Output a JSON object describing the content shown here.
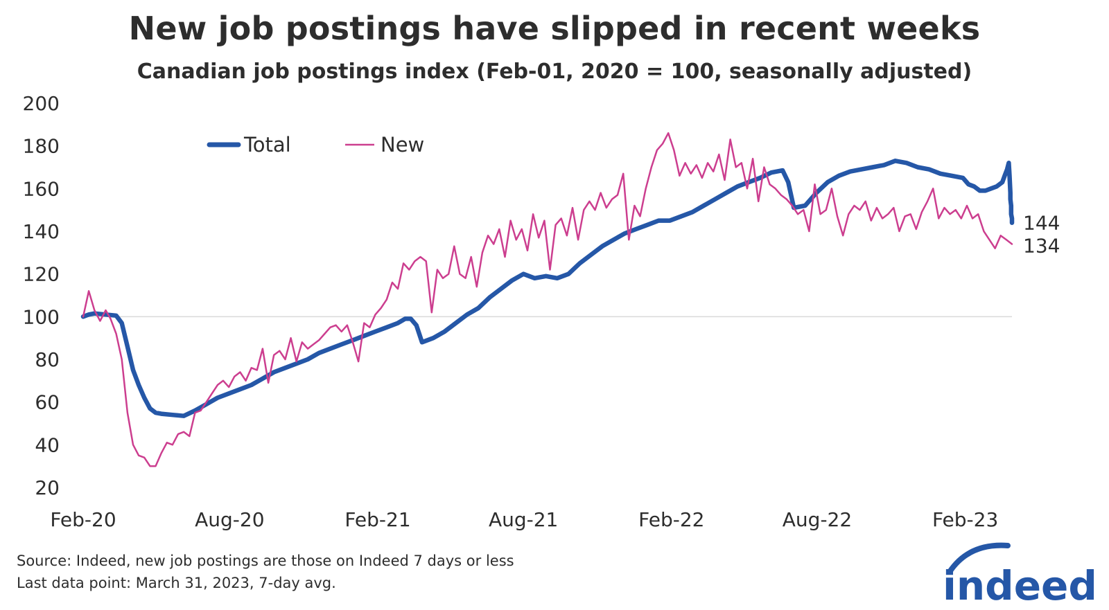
{
  "title": "New job postings have slipped in recent weeks",
  "subtitle": "Canadian job postings index (Feb-01, 2020 = 100, seasonally adjusted)",
  "source_line1": "Source: Indeed, new job postings are those on Indeed 7 days or less",
  "source_line2": "Last data point: March 31, 2023, 7-day avg.",
  "logo_text": "indeed",
  "colors": {
    "total": "#2557a7",
    "new": "#cc3e8f",
    "baseline": "#d9d9d9",
    "text": "#2d2d2d"
  },
  "chart_data": {
    "type": "line",
    "ylim": [
      20,
      200
    ],
    "yticks": [
      20,
      40,
      60,
      80,
      100,
      120,
      140,
      160,
      180,
      200
    ],
    "xlim": [
      "2020-02-01",
      "2023-03-31"
    ],
    "xticks": [
      {
        "label": "Feb-20",
        "date": "2020-02-01"
      },
      {
        "label": "Aug-20",
        "date": "2020-08-01"
      },
      {
        "label": "Feb-21",
        "date": "2021-02-01"
      },
      {
        "label": "Aug-21",
        "date": "2021-08-01"
      },
      {
        "label": "Feb-22",
        "date": "2022-02-01"
      },
      {
        "label": "Aug-22",
        "date": "2022-08-01"
      },
      {
        "label": "Feb-23",
        "date": "2023-02-01"
      }
    ],
    "reference_line": 100,
    "legend": {
      "placement": "top-left"
    },
    "end_labels": {
      "total": "144",
      "new": "134"
    },
    "series": [
      {
        "name": "Total",
        "key": "total",
        "points": [
          [
            "2020-02-01",
            100
          ],
          [
            "2020-02-08",
            101
          ],
          [
            "2020-02-15",
            101.5
          ],
          [
            "2020-02-29",
            101
          ],
          [
            "2020-03-13",
            100.5
          ],
          [
            "2020-03-20",
            97
          ],
          [
            "2020-03-27",
            86
          ],
          [
            "2020-04-03",
            75
          ],
          [
            "2020-04-10",
            68
          ],
          [
            "2020-04-17",
            62
          ],
          [
            "2020-04-24",
            57
          ],
          [
            "2020-05-01",
            55
          ],
          [
            "2020-05-08",
            54.5
          ],
          [
            "2020-05-22",
            54
          ],
          [
            "2020-06-05",
            53.5
          ],
          [
            "2020-06-19",
            56
          ],
          [
            "2020-07-03",
            59
          ],
          [
            "2020-07-17",
            62
          ],
          [
            "2020-07-31",
            64
          ],
          [
            "2020-08-14",
            66
          ],
          [
            "2020-08-28",
            68
          ],
          [
            "2020-09-11",
            71
          ],
          [
            "2020-09-25",
            74
          ],
          [
            "2020-10-09",
            76
          ],
          [
            "2020-10-23",
            78
          ],
          [
            "2020-11-06",
            80
          ],
          [
            "2020-11-20",
            83
          ],
          [
            "2020-12-04",
            85
          ],
          [
            "2020-12-18",
            87
          ],
          [
            "2021-01-01",
            89
          ],
          [
            "2021-01-15",
            91
          ],
          [
            "2021-01-29",
            93
          ],
          [
            "2021-02-12",
            95
          ],
          [
            "2021-02-26",
            97
          ],
          [
            "2021-03-07",
            99
          ],
          [
            "2021-03-14",
            99
          ],
          [
            "2021-03-21",
            96
          ],
          [
            "2021-03-28",
            88
          ],
          [
            "2021-04-11",
            90
          ],
          [
            "2021-04-25",
            93
          ],
          [
            "2021-05-09",
            97
          ],
          [
            "2021-05-23",
            101
          ],
          [
            "2021-06-06",
            104
          ],
          [
            "2021-06-20",
            109
          ],
          [
            "2021-07-04",
            113
          ],
          [
            "2021-07-18",
            117
          ],
          [
            "2021-08-01",
            120
          ],
          [
            "2021-08-15",
            118
          ],
          [
            "2021-08-29",
            119
          ],
          [
            "2021-09-12",
            118
          ],
          [
            "2021-09-26",
            120
          ],
          [
            "2021-10-10",
            125
          ],
          [
            "2021-10-24",
            129
          ],
          [
            "2021-11-07",
            133
          ],
          [
            "2021-11-21",
            136
          ],
          [
            "2021-12-05",
            139
          ],
          [
            "2021-12-19",
            141
          ],
          [
            "2022-01-02",
            143
          ],
          [
            "2022-01-16",
            145
          ],
          [
            "2022-01-30",
            145
          ],
          [
            "2022-02-13",
            147
          ],
          [
            "2022-02-27",
            149
          ],
          [
            "2022-03-13",
            152
          ],
          [
            "2022-03-27",
            155
          ],
          [
            "2022-04-10",
            158
          ],
          [
            "2022-04-24",
            161
          ],
          [
            "2022-05-08",
            163
          ],
          [
            "2022-05-22",
            165
          ],
          [
            "2022-06-05",
            167.5
          ],
          [
            "2022-06-19",
            168.5
          ],
          [
            "2022-06-26",
            163
          ],
          [
            "2022-07-03",
            151
          ],
          [
            "2022-07-17",
            152
          ],
          [
            "2022-07-31",
            158
          ],
          [
            "2022-08-14",
            163
          ],
          [
            "2022-08-28",
            166
          ],
          [
            "2022-09-11",
            168
          ],
          [
            "2022-09-25",
            169
          ],
          [
            "2022-10-09",
            170
          ],
          [
            "2022-10-23",
            171
          ],
          [
            "2022-11-06",
            173
          ],
          [
            "2022-11-20",
            172
          ],
          [
            "2022-12-04",
            170
          ],
          [
            "2022-12-18",
            169
          ],
          [
            "2023-01-01",
            167
          ],
          [
            "2023-01-15",
            166
          ],
          [
            "2023-01-29",
            165
          ],
          [
            "2023-02-05",
            162
          ],
          [
            "2023-02-12",
            161
          ],
          [
            "2023-02-19",
            159
          ],
          [
            "2023-02-26",
            159
          ],
          [
            "2023-03-05",
            160
          ],
          [
            "2023-03-12",
            161
          ],
          [
            "2023-03-19",
            163
          ],
          [
            "2023-03-22",
            166
          ],
          [
            "2023-03-25",
            169
          ],
          [
            "2023-03-27",
            172
          ],
          [
            "2023-03-28",
            166
          ],
          [
            "2023-03-29",
            158
          ],
          [
            "2023-03-29",
            155
          ],
          [
            "2023-03-30",
            152
          ],
          [
            "2023-03-30",
            148
          ],
          [
            "2023-03-31",
            146
          ],
          [
            "2023-03-31",
            144
          ]
        ]
      },
      {
        "name": "New",
        "key": "new",
        "points": [
          [
            "2020-02-01",
            100
          ],
          [
            "2020-02-08",
            112
          ],
          [
            "2020-02-15",
            103
          ],
          [
            "2020-02-22",
            98
          ],
          [
            "2020-02-29",
            103
          ],
          [
            "2020-03-06",
            99
          ],
          [
            "2020-03-13",
            92
          ],
          [
            "2020-03-20",
            80
          ],
          [
            "2020-03-27",
            55
          ],
          [
            "2020-04-03",
            40
          ],
          [
            "2020-04-10",
            35
          ],
          [
            "2020-04-17",
            34
          ],
          [
            "2020-04-24",
            30
          ],
          [
            "2020-05-01",
            30
          ],
          [
            "2020-05-08",
            36
          ],
          [
            "2020-05-15",
            41
          ],
          [
            "2020-05-22",
            40
          ],
          [
            "2020-05-29",
            45
          ],
          [
            "2020-06-05",
            46
          ],
          [
            "2020-06-12",
            44
          ],
          [
            "2020-06-19",
            55
          ],
          [
            "2020-06-26",
            56
          ],
          [
            "2020-07-03",
            60
          ],
          [
            "2020-07-10",
            64
          ],
          [
            "2020-07-17",
            68
          ],
          [
            "2020-07-24",
            70
          ],
          [
            "2020-07-31",
            67
          ],
          [
            "2020-08-07",
            72
          ],
          [
            "2020-08-14",
            74
          ],
          [
            "2020-08-21",
            70
          ],
          [
            "2020-08-28",
            76
          ],
          [
            "2020-09-04",
            75
          ],
          [
            "2020-09-11",
            85
          ],
          [
            "2020-09-18",
            69
          ],
          [
            "2020-09-25",
            82
          ],
          [
            "2020-10-02",
            84
          ],
          [
            "2020-10-09",
            80
          ],
          [
            "2020-10-16",
            90
          ],
          [
            "2020-10-23",
            79
          ],
          [
            "2020-10-30",
            88
          ],
          [
            "2020-11-06",
            85
          ],
          [
            "2020-11-13",
            87
          ],
          [
            "2020-11-20",
            89
          ],
          [
            "2020-11-27",
            92
          ],
          [
            "2020-12-04",
            95
          ],
          [
            "2020-12-11",
            96
          ],
          [
            "2020-12-18",
            93
          ],
          [
            "2020-12-25",
            96
          ],
          [
            "2021-01-01",
            88
          ],
          [
            "2021-01-08",
            79
          ],
          [
            "2021-01-15",
            97
          ],
          [
            "2021-01-22",
            95
          ],
          [
            "2021-01-29",
            101
          ],
          [
            "2021-02-05",
            104
          ],
          [
            "2021-02-12",
            108
          ],
          [
            "2021-02-19",
            116
          ],
          [
            "2021-02-26",
            113
          ],
          [
            "2021-03-05",
            125
          ],
          [
            "2021-03-12",
            122
          ],
          [
            "2021-03-19",
            126
          ],
          [
            "2021-03-26",
            128
          ],
          [
            "2021-04-02",
            126
          ],
          [
            "2021-04-09",
            102
          ],
          [
            "2021-04-16",
            122
          ],
          [
            "2021-04-23",
            118
          ],
          [
            "2021-04-30",
            120
          ],
          [
            "2021-05-07",
            133
          ],
          [
            "2021-05-14",
            120
          ],
          [
            "2021-05-21",
            118
          ],
          [
            "2021-05-28",
            128
          ],
          [
            "2021-06-04",
            114
          ],
          [
            "2021-06-11",
            130
          ],
          [
            "2021-06-18",
            138
          ],
          [
            "2021-06-25",
            134
          ],
          [
            "2021-07-02",
            141
          ],
          [
            "2021-07-09",
            128
          ],
          [
            "2021-07-16",
            145
          ],
          [
            "2021-07-23",
            136
          ],
          [
            "2021-07-30",
            141
          ],
          [
            "2021-08-06",
            131
          ],
          [
            "2021-08-13",
            148
          ],
          [
            "2021-08-20",
            137
          ],
          [
            "2021-08-27",
            145
          ],
          [
            "2021-09-03",
            122
          ],
          [
            "2021-09-10",
            143
          ],
          [
            "2021-09-17",
            146
          ],
          [
            "2021-09-24",
            138
          ],
          [
            "2021-10-01",
            151
          ],
          [
            "2021-10-08",
            136
          ],
          [
            "2021-10-15",
            150
          ],
          [
            "2021-10-22",
            154
          ],
          [
            "2021-10-29",
            150
          ],
          [
            "2021-11-05",
            158
          ],
          [
            "2021-11-12",
            151
          ],
          [
            "2021-11-19",
            155
          ],
          [
            "2021-11-26",
            157
          ],
          [
            "2021-12-03",
            167
          ],
          [
            "2021-12-10",
            136
          ],
          [
            "2021-12-17",
            152
          ],
          [
            "2021-12-24",
            147
          ],
          [
            "2021-12-31",
            160
          ],
          [
            "2022-01-07",
            170
          ],
          [
            "2022-01-14",
            178
          ],
          [
            "2022-01-21",
            181
          ],
          [
            "2022-01-28",
            186
          ],
          [
            "2022-02-04",
            178
          ],
          [
            "2022-02-11",
            166
          ],
          [
            "2022-02-18",
            172
          ],
          [
            "2022-02-25",
            167
          ],
          [
            "2022-03-04",
            171
          ],
          [
            "2022-03-11",
            165
          ],
          [
            "2022-03-18",
            172
          ],
          [
            "2022-03-25",
            168
          ],
          [
            "2022-04-01",
            176
          ],
          [
            "2022-04-08",
            164
          ],
          [
            "2022-04-15",
            183
          ],
          [
            "2022-04-22",
            170
          ],
          [
            "2022-04-29",
            172
          ],
          [
            "2022-05-06",
            160
          ],
          [
            "2022-05-13",
            174
          ],
          [
            "2022-05-20",
            154
          ],
          [
            "2022-05-27",
            170
          ],
          [
            "2022-06-03",
            162
          ],
          [
            "2022-06-10",
            160
          ],
          [
            "2022-06-17",
            157
          ],
          [
            "2022-06-24",
            155
          ],
          [
            "2022-07-01",
            152
          ],
          [
            "2022-07-08",
            148
          ],
          [
            "2022-07-15",
            150
          ],
          [
            "2022-07-22",
            140
          ],
          [
            "2022-07-29",
            162
          ],
          [
            "2022-08-05",
            148
          ],
          [
            "2022-08-12",
            150
          ],
          [
            "2022-08-19",
            160
          ],
          [
            "2022-08-26",
            147
          ],
          [
            "2022-09-02",
            138
          ],
          [
            "2022-09-09",
            148
          ],
          [
            "2022-09-16",
            152
          ],
          [
            "2022-09-23",
            150
          ],
          [
            "2022-09-30",
            154
          ],
          [
            "2022-10-07",
            145
          ],
          [
            "2022-10-14",
            151
          ],
          [
            "2022-10-21",
            146
          ],
          [
            "2022-10-28",
            148
          ],
          [
            "2022-11-04",
            151
          ],
          [
            "2022-11-11",
            140
          ],
          [
            "2022-11-18",
            147
          ],
          [
            "2022-11-25",
            148
          ],
          [
            "2022-12-02",
            141
          ],
          [
            "2022-12-09",
            149
          ],
          [
            "2022-12-16",
            154
          ],
          [
            "2022-12-23",
            160
          ],
          [
            "2022-12-30",
            146
          ],
          [
            "2023-01-06",
            151
          ],
          [
            "2023-01-13",
            148
          ],
          [
            "2023-01-20",
            150
          ],
          [
            "2023-01-27",
            146
          ],
          [
            "2023-02-03",
            152
          ],
          [
            "2023-02-10",
            146
          ],
          [
            "2023-02-17",
            148
          ],
          [
            "2023-02-24",
            140
          ],
          [
            "2023-03-03",
            136
          ],
          [
            "2023-03-10",
            132
          ],
          [
            "2023-03-17",
            138
          ],
          [
            "2023-03-24",
            136
          ],
          [
            "2023-03-31",
            134
          ]
        ]
      }
    ]
  }
}
